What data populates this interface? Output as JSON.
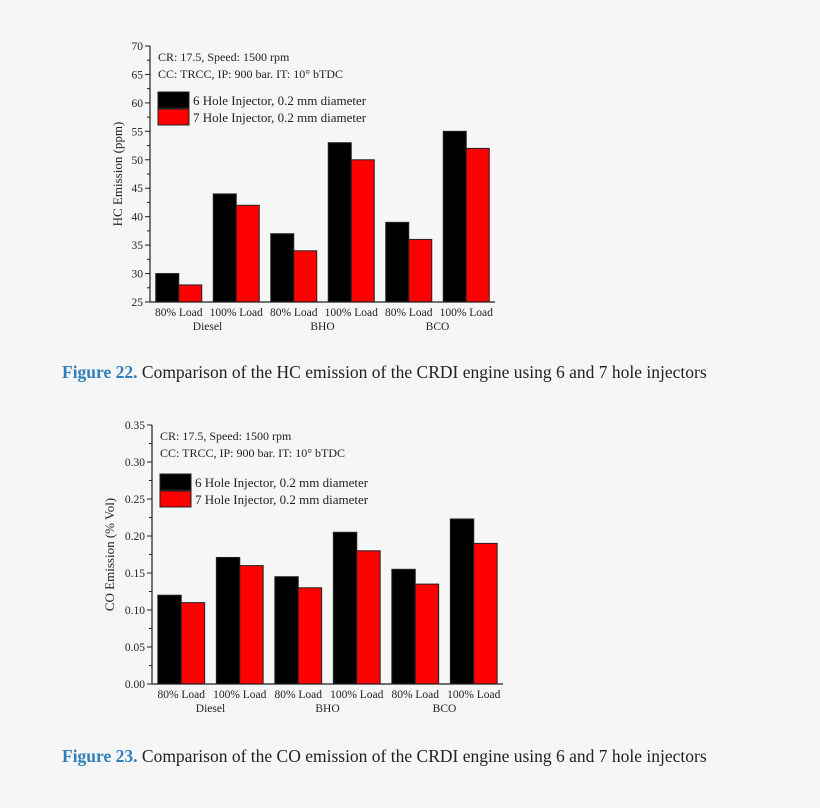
{
  "colors": {
    "six_hole": "#000000",
    "seven_hole": "#ff0000",
    "caption_label": "#2f7fbf"
  },
  "chart_data": [
    {
      "type": "bar",
      "title": "",
      "ylabel": "HC Emission (ppm)",
      "xlabel": "",
      "ylim": [
        25,
        70
      ],
      "yticks": [
        25,
        30,
        35,
        40,
        45,
        50,
        55,
        60,
        65,
        70
      ],
      "categories": [
        "80% Load",
        "100% Load",
        "80% Load",
        "100% Load",
        "80% Load",
        "100% Load"
      ],
      "groups": [
        "Diesel",
        "BHO",
        "BCO"
      ],
      "annotations": [
        "CR: 17.5, Speed: 1500 rpm",
        "CC: TRCC, IP: 900 bar. IT: 10° bTDC"
      ],
      "legend_position": "top-left",
      "series": [
        {
          "name": "6 Hole Injector, 0.2 mm diameter",
          "values": [
            30,
            44,
            37,
            53,
            39,
            55
          ]
        },
        {
          "name": "7 Hole Injector, 0.2 mm diameter",
          "values": [
            28,
            42,
            34,
            50,
            36,
            52
          ]
        }
      ]
    },
    {
      "type": "bar",
      "title": "",
      "ylabel": "CO Emission (% Vol)",
      "xlabel": "",
      "ylim": [
        0,
        0.35
      ],
      "yticks": [
        "0.00",
        "0.05",
        "0.10",
        "0.15",
        "0.20",
        "0.25",
        "0.30",
        "0.35"
      ],
      "categories": [
        "80% Load",
        "100% Load",
        "80% Load",
        "100% Load",
        "80% Load",
        "100% Load"
      ],
      "groups": [
        "Diesel",
        "BHO",
        "BCO"
      ],
      "annotations": [
        "CR: 17.5, Speed: 1500 rpm",
        "CC: TRCC, IP: 900 bar. IT: 10° bTDC"
      ],
      "legend_position": "top-left",
      "series": [
        {
          "name": "6 Hole Injector, 0.2 mm diameter",
          "values": [
            0.12,
            0.171,
            0.145,
            0.205,
            0.155,
            0.223
          ]
        },
        {
          "name": "7 Hole Injector, 0.2 mm diameter",
          "values": [
            0.11,
            0.16,
            0.13,
            0.18,
            0.135,
            0.19
          ]
        }
      ]
    }
  ],
  "captions": [
    {
      "label": "Figure 22.",
      "text": " Comparison of the HC emission of the CRDI engine using 6 and 7 hole injectors"
    },
    {
      "label": "Figure 23.",
      "text": " Comparison of the CO emission of the CRDI engine using 6 and 7 hole injectors"
    }
  ]
}
